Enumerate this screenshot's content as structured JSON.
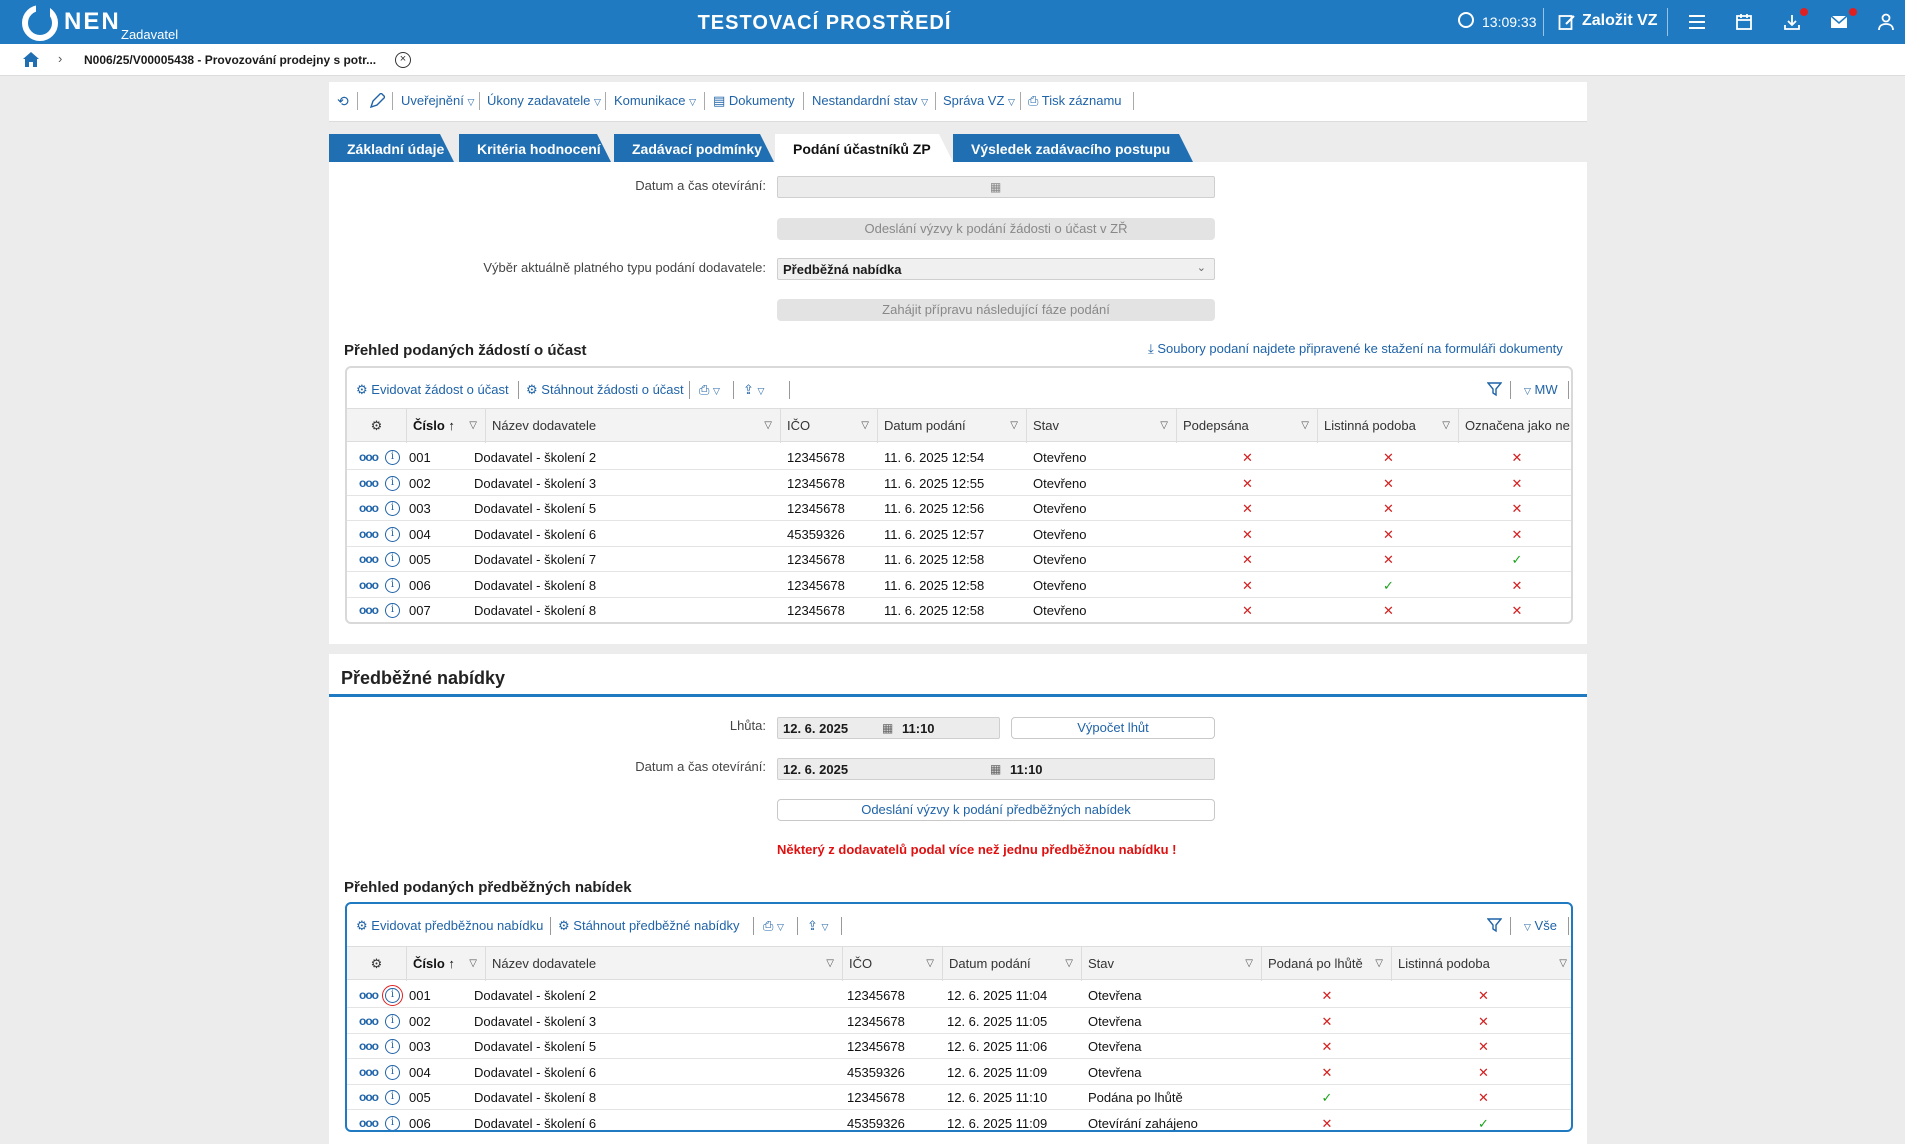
{
  "header": {
    "brand": "NEN",
    "brand_sub": "Zadavatel",
    "env_title": "TESTOVACÍ PROSTŘEDÍ",
    "time": "13:09:33",
    "create_label": "Založit VZ"
  },
  "breadcrumb": {
    "item": "N006/25/V00005438 - Provozování prodejny s potr..."
  },
  "menu": [
    "Uveřejnění",
    "Úkony zadavatele",
    "Komunikace",
    "Dokumenty",
    "Nestandardní stav",
    "Správa VZ",
    "Tisk záznamu"
  ],
  "tabs": [
    "Základní údaje",
    "Kritéria hodnocení",
    "Zadávací podmínky",
    "Podání účastníků ZP",
    "Výsledek zadávacího postupu"
  ],
  "active_tab": "Podání účastníků ZP",
  "top_form": {
    "open_label": "Datum a čas otevírání:",
    "send_call_button": "Odeslání výzvy k podání žádosti o účast v ZŘ",
    "type_label": "Výběr aktuálně platného typu podání dodavatele:",
    "type_value": "Předběžná nabídka",
    "prepare_button": "Zahájit přípravu následující fáze podání"
  },
  "requests": {
    "title": "Přehled podaných žádostí o účast",
    "download_link": "Soubory podaní najdete připravené ke stažení na formuláři dokumenty",
    "tool_register": "Evidovat žádost o účast",
    "tool_download": "Stáhnout žádosti o účast",
    "tool_mw": "MW",
    "columns": [
      "Číslo",
      "Název dodavatele",
      "IČO",
      "Datum podání",
      "Stav",
      "Podepsána",
      "Listinná podoba",
      "Označena jako ne"
    ],
    "rows": [
      {
        "num": "001",
        "name": "Dodavatel - školení 2",
        "ico": "12345678",
        "date": "11. 6. 2025 12:54",
        "state": "Otevřeno",
        "signed": "x",
        "paper": "x",
        "marked": "x"
      },
      {
        "num": "002",
        "name": "Dodavatel - školení 3",
        "ico": "12345678",
        "date": "11. 6. 2025 12:55",
        "state": "Otevřeno",
        "signed": "x",
        "paper": "x",
        "marked": "x"
      },
      {
        "num": "003",
        "name": "Dodavatel - školení 5",
        "ico": "12345678",
        "date": "11. 6. 2025 12:56",
        "state": "Otevřeno",
        "signed": "x",
        "paper": "x",
        "marked": "x"
      },
      {
        "num": "004",
        "name": "Dodavatel - školení 6",
        "ico": "45359326",
        "date": "11. 6. 2025 12:57",
        "state": "Otevřeno",
        "signed": "x",
        "paper": "x",
        "marked": "x"
      },
      {
        "num": "005",
        "name": "Dodavatel - školení 7",
        "ico": "12345678",
        "date": "11. 6. 2025 12:58",
        "state": "Otevřeno",
        "signed": "x",
        "paper": "x",
        "marked": "check"
      },
      {
        "num": "006",
        "name": "Dodavatel - školení 8",
        "ico": "12345678",
        "date": "11. 6. 2025 12:58",
        "state": "Otevřeno",
        "signed": "x",
        "paper": "check",
        "marked": "x"
      },
      {
        "num": "007",
        "name": "Dodavatel - školení 8",
        "ico": "12345678",
        "date": "11. 6. 2025 12:58",
        "state": "Otevřeno",
        "signed": "x",
        "paper": "x",
        "marked": "x"
      }
    ]
  },
  "prelim": {
    "section_title": "Předběžné nabídky",
    "deadline_label": "Lhůta:",
    "deadline_date": "12. 6. 2025",
    "deadline_time": "11:10",
    "calc_button": "Výpočet lhůt",
    "open_label": "Datum a čas otevírání:",
    "open_date": "12. 6. 2025",
    "open_time": "11:10",
    "send_button": "Odeslání výzvy k podání předběžných nabídek",
    "warning": "Některý z dodavatelů podal více než jednu předběžnou nabídku !",
    "list_title": "Přehled podaných předběžných nabídek",
    "tool_register": "Evidovat předběžnou nabídku",
    "tool_download": "Stáhnout předběžné nabídky",
    "tool_all": "Vše",
    "columns": [
      "Číslo",
      "Název dodavatele",
      "IČO",
      "Datum podání",
      "Stav",
      "Podaná po lhůtě",
      "Listinná podoba"
    ],
    "rows": [
      {
        "num": "001",
        "name": "Dodavatel - školení 2",
        "ico": "12345678",
        "date": "12. 6. 2025 11:04",
        "state": "Otevřena",
        "late": "x",
        "paper": "x"
      },
      {
        "num": "002",
        "name": "Dodavatel - školení 3",
        "ico": "12345678",
        "date": "12. 6. 2025 11:05",
        "state": "Otevřena",
        "late": "x",
        "paper": "x"
      },
      {
        "num": "003",
        "name": "Dodavatel - školení 5",
        "ico": "12345678",
        "date": "12. 6. 2025 11:06",
        "state": "Otevřena",
        "late": "x",
        "paper": "x"
      },
      {
        "num": "004",
        "name": "Dodavatel - školení 6",
        "ico": "45359326",
        "date": "12. 6. 2025 11:09",
        "state": "Otevřena",
        "late": "x",
        "paper": "x"
      },
      {
        "num": "005",
        "name": "Dodavatel - školení 8",
        "ico": "12345678",
        "date": "12. 6. 2025 11:10",
        "state": "Podána po lhůtě",
        "late": "check",
        "paper": "x"
      },
      {
        "num": "006",
        "name": "Dodavatel - školení 6",
        "ico": "45359326",
        "date": "12. 6. 2025 11:09",
        "state": "Otevírání zahájeno",
        "late": "x",
        "paper": "check"
      }
    ]
  },
  "colors": {
    "brand_blue": "#1f7ac1",
    "error_red": "#e01010",
    "ok_green": "#1aa31a"
  }
}
